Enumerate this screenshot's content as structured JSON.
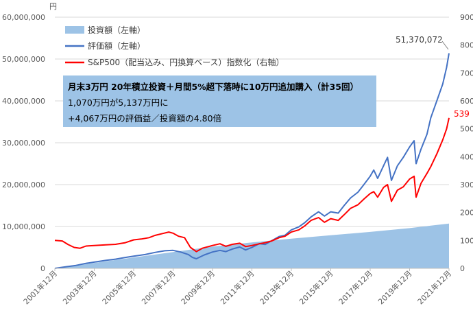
{
  "chart_data": {
    "type": "line",
    "y_unit_label": "円",
    "left_axis": {
      "min": 0,
      "max": 60000000,
      "ticks": [
        "0",
        "10,000,000",
        "20,000,000",
        "30,000,000",
        "40,000,000",
        "50,000,000",
        "60,000,000"
      ]
    },
    "right_axis": {
      "min": 0,
      "max": 900,
      "ticks": [
        "0",
        "100",
        "200",
        "300",
        "400",
        "500",
        "600",
        "700",
        "800",
        "900"
      ]
    },
    "x_axis": {
      "start": 2001.92,
      "end": 2021.92,
      "ticks": [
        {
          "label": "2001年12月",
          "x": 2001.92
        },
        {
          "label": "2003年12月",
          "x": 2003.92
        },
        {
          "label": "2005年12月",
          "x": 2005.92
        },
        {
          "label": "2007年12月",
          "x": 2007.92
        },
        {
          "label": "2009年12月",
          "x": 2009.92
        },
        {
          "label": "2011年12月",
          "x": 2011.92
        },
        {
          "label": "2013年12月",
          "x": 2013.92
        },
        {
          "label": "2015年12月",
          "x": 2015.92
        },
        {
          "label": "2017年12月",
          "x": 2017.92
        },
        {
          "label": "2019年12月",
          "x": 2019.92
        },
        {
          "label": "2021年12月",
          "x": 2021.92
        }
      ]
    },
    "legend_position": "top-left",
    "legend": [
      {
        "label": "投資額（左軸）",
        "kind": "area",
        "color": "#9dc3e6"
      },
      {
        "label": "評価額（左軸）",
        "kind": "line",
        "color": "#4472c4"
      },
      {
        "label": "S&P500（配当込み、円換算ベース）指数化（右軸）",
        "kind": "line",
        "color": "#ff0000"
      }
    ],
    "info_box": {
      "line1": "月末3万円 20年積立投資＋月間5%超下落時に10万円追加購入（計35回）",
      "line2": "1,070万円が5,137万円に",
      "line3": "+4,067万円の評価益／投資額の4.80倍"
    },
    "annotations": {
      "final_value_label": "51,370,072",
      "final_index_label": "539"
    },
    "series": [
      {
        "name": "投資額（左軸）",
        "axis": "left",
        "kind": "area",
        "color": "#9dc3e6",
        "points": [
          [
            2001.92,
            0
          ],
          [
            2003.92,
            1300000
          ],
          [
            2005.92,
            2600000
          ],
          [
            2007.92,
            3900000
          ],
          [
            2009.92,
            5200000
          ],
          [
            2011.92,
            6200000
          ],
          [
            2013.92,
            7100000
          ],
          [
            2015.92,
            7900000
          ],
          [
            2017.92,
            8700000
          ],
          [
            2019.92,
            9600000
          ],
          [
            2021.92,
            10700000
          ]
        ]
      },
      {
        "name": "評価額（左軸）",
        "axis": "left",
        "kind": "line",
        "color": "#4472c4",
        "points": [
          [
            2001.92,
            0
          ],
          [
            2002.5,
            400000
          ],
          [
            2003.0,
            700000
          ],
          [
            2003.5,
            1200000
          ],
          [
            2003.92,
            1500000
          ],
          [
            2004.5,
            1900000
          ],
          [
            2005.0,
            2200000
          ],
          [
            2005.5,
            2600000
          ],
          [
            2005.92,
            2900000
          ],
          [
            2006.5,
            3300000
          ],
          [
            2007.0,
            3800000
          ],
          [
            2007.5,
            4200000
          ],
          [
            2007.92,
            4300000
          ],
          [
            2008.3,
            3900000
          ],
          [
            2008.7,
            3300000
          ],
          [
            2008.9,
            2600000
          ],
          [
            2009.1,
            2300000
          ],
          [
            2009.5,
            3200000
          ],
          [
            2009.92,
            3900000
          ],
          [
            2010.3,
            4300000
          ],
          [
            2010.6,
            4000000
          ],
          [
            2010.92,
            4600000
          ],
          [
            2011.3,
            5100000
          ],
          [
            2011.6,
            4400000
          ],
          [
            2011.92,
            5000000
          ],
          [
            2012.3,
            5900000
          ],
          [
            2012.6,
            5700000
          ],
          [
            2012.92,
            6600000
          ],
          [
            2013.3,
            7600000
          ],
          [
            2013.6,
            7900000
          ],
          [
            2013.92,
            9200000
          ],
          [
            2014.3,
            9900000
          ],
          [
            2014.6,
            10900000
          ],
          [
            2014.92,
            12300000
          ],
          [
            2015.3,
            13500000
          ],
          [
            2015.6,
            12500000
          ],
          [
            2015.92,
            13500000
          ],
          [
            2016.3,
            13200000
          ],
          [
            2016.6,
            15000000
          ],
          [
            2016.92,
            16800000
          ],
          [
            2017.3,
            18200000
          ],
          [
            2017.6,
            20000000
          ],
          [
            2017.92,
            22000000
          ],
          [
            2018.1,
            23500000
          ],
          [
            2018.3,
            21500000
          ],
          [
            2018.6,
            24500000
          ],
          [
            2018.8,
            26500000
          ],
          [
            2019.0,
            21000000
          ],
          [
            2019.3,
            24500000
          ],
          [
            2019.6,
            26500000
          ],
          [
            2019.92,
            29000000
          ],
          [
            2020.15,
            30500000
          ],
          [
            2020.25,
            25000000
          ],
          [
            2020.5,
            28500000
          ],
          [
            2020.8,
            32000000
          ],
          [
            2021.0,
            36000000
          ],
          [
            2021.3,
            40000000
          ],
          [
            2021.6,
            44000000
          ],
          [
            2021.8,
            48000000
          ],
          [
            2021.92,
            51370072
          ]
        ]
      },
      {
        "name": "S&P500（配当込み、円換算ベース）指数化（右軸）",
        "axis": "right",
        "kind": "line",
        "color": "#ff0000",
        "points": [
          [
            2001.92,
            100
          ],
          [
            2002.3,
            98
          ],
          [
            2002.6,
            85
          ],
          [
            2002.9,
            75
          ],
          [
            2003.2,
            72
          ],
          [
            2003.5,
            80
          ],
          [
            2003.92,
            82
          ],
          [
            2004.5,
            84
          ],
          [
            2005.0,
            86
          ],
          [
            2005.5,
            92
          ],
          [
            2005.92,
            102
          ],
          [
            2006.3,
            105
          ],
          [
            2006.7,
            110
          ],
          [
            2007.0,
            118
          ],
          [
            2007.4,
            125
          ],
          [
            2007.7,
            130
          ],
          [
            2007.92,
            126
          ],
          [
            2008.2,
            115
          ],
          [
            2008.5,
            110
          ],
          [
            2008.8,
            75
          ],
          [
            2009.1,
            60
          ],
          [
            2009.4,
            72
          ],
          [
            2009.92,
            82
          ],
          [
            2010.3,
            88
          ],
          [
            2010.6,
            79
          ],
          [
            2010.92,
            86
          ],
          [
            2011.3,
            90
          ],
          [
            2011.6,
            78
          ],
          [
            2011.92,
            82
          ],
          [
            2012.3,
            88
          ],
          [
            2012.6,
            92
          ],
          [
            2012.92,
            98
          ],
          [
            2013.3,
            110
          ],
          [
            2013.6,
            115
          ],
          [
            2013.92,
            130
          ],
          [
            2014.3,
            138
          ],
          [
            2014.6,
            152
          ],
          [
            2014.92,
            172
          ],
          [
            2015.3,
            182
          ],
          [
            2015.6,
            165
          ],
          [
            2015.92,
            178
          ],
          [
            2016.3,
            172
          ],
          [
            2016.6,
            192
          ],
          [
            2016.92,
            215
          ],
          [
            2017.3,
            228
          ],
          [
            2017.6,
            248
          ],
          [
            2017.92,
            268
          ],
          [
            2018.1,
            275
          ],
          [
            2018.3,
            255
          ],
          [
            2018.6,
            290
          ],
          [
            2018.8,
            300
          ],
          [
            2019.0,
            240
          ],
          [
            2019.3,
            280
          ],
          [
            2019.6,
            292
          ],
          [
            2019.92,
            320
          ],
          [
            2020.15,
            330
          ],
          [
            2020.25,
            255
          ],
          [
            2020.5,
            305
          ],
          [
            2020.8,
            340
          ],
          [
            2021.0,
            365
          ],
          [
            2021.3,
            410
          ],
          [
            2021.6,
            460
          ],
          [
            2021.8,
            500
          ],
          [
            2021.92,
            539
          ]
        ]
      }
    ]
  }
}
